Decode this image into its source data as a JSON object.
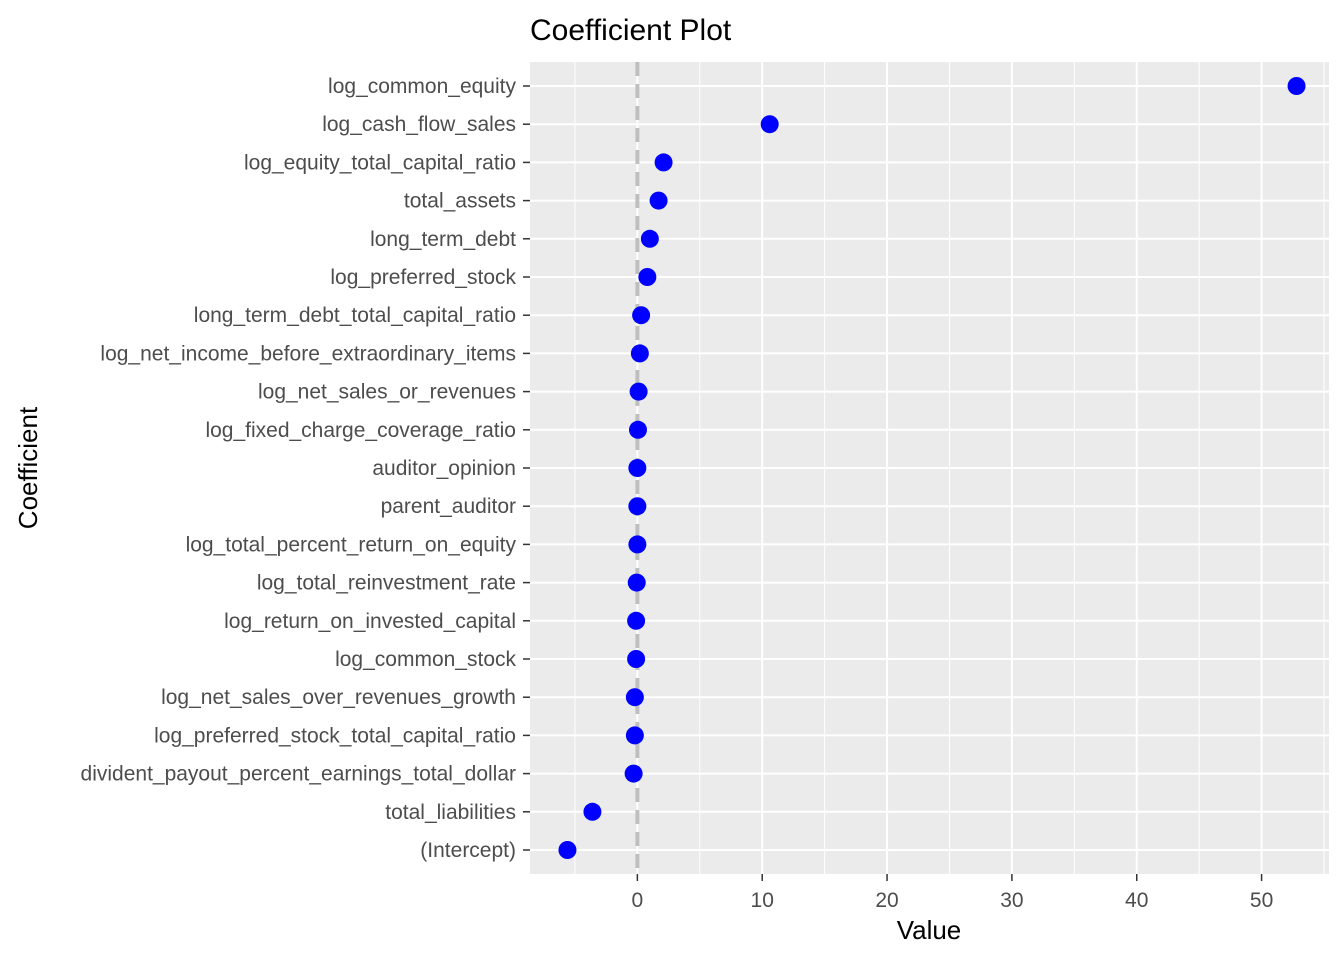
{
  "chart_data": {
    "type": "scatter",
    "title": "Coefficient Plot",
    "xlabel": "Value",
    "ylabel": "Coefficient",
    "xlim": [
      -8.6,
      55.4
    ],
    "x_ticks": [
      0,
      10,
      20,
      30,
      40,
      50
    ],
    "reference_line": {
      "x": 0,
      "style": "dashed",
      "color": "#bfbfbf"
    },
    "point_color": "#0000ff",
    "panel_background": "#ebebeb",
    "grid": true,
    "legend": "none",
    "categories": [
      "log_common_equity",
      "log_cash_flow_sales",
      "log_equity_total_capital_ratio",
      "total_assets",
      "long_term_debt",
      "log_preferred_stock",
      "long_term_debt_total_capital_ratio",
      "log_net_income_before_extraordinary_items",
      "log_net_sales_or_revenues",
      "log_fixed_charge_coverage_ratio",
      "auditor_opinion",
      "parent_auditor",
      "log_total_percent_return_on_equity",
      "log_total_reinvestment_rate",
      "log_return_on_invested_capital",
      "log_common_stock",
      "log_net_sales_over_revenues_growth",
      "log_preferred_stock_total_capital_ratio",
      "divident_payout_percent_earnings_total_dollar",
      "total_liabilities",
      "(Intercept)"
    ],
    "values": [
      52.8,
      10.6,
      2.1,
      1.7,
      1.0,
      0.8,
      0.3,
      0.2,
      0.1,
      0.05,
      0.0,
      0.0,
      0.0,
      -0.05,
      -0.1,
      -0.1,
      -0.2,
      -0.2,
      -0.3,
      -3.6,
      -5.6
    ]
  }
}
